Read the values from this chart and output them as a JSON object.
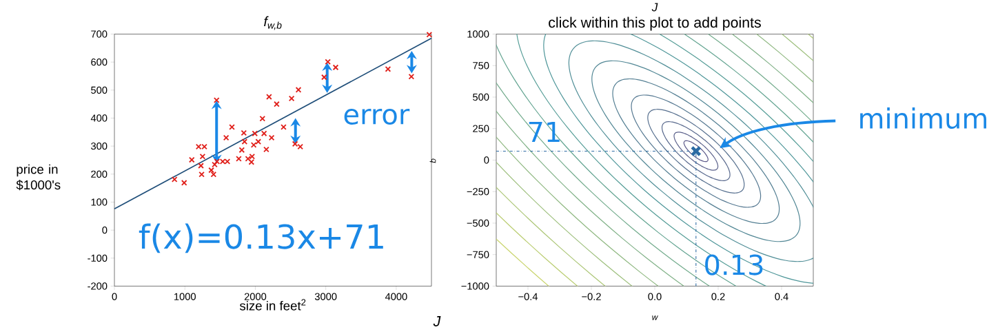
{
  "chart_data": [
    {
      "type": "scatter",
      "title": "f$_{w,b}$",
      "xlabel": "size in feet$^{2}$",
      "ylabel": "price in $1000's",
      "xlim": [
        0,
        4500
      ],
      "ylim": [
        -200,
        700
      ],
      "xticks": [
        0,
        1000,
        2000,
        3000,
        4000
      ],
      "yticks": [
        -200,
        -100,
        0,
        100,
        200,
        300,
        400,
        500,
        600,
        700
      ],
      "series": [
        {
          "type": "scatter",
          "color": "#e0201b",
          "marker": "cross",
          "x": [
            853,
            990,
            1098,
            1195,
            1277,
            1251,
            1228,
            1238,
            1375,
            1407,
            1423,
            1456,
            1450,
            1537,
            1603,
            1586,
            1668,
            1765,
            1808,
            1837,
            1847,
            1896,
            1945,
            1954,
            1977,
            1993,
            2042,
            2101,
            2124,
            2156,
            2231,
            2195,
            2303,
            2401,
            2515,
            2612,
            2564,
            2638,
            2977,
            3029,
            3140,
            3883,
            4215,
            4469
          ],
          "values": [
            181,
            169,
            251,
            298,
            298,
            263,
            230,
            199,
            214,
            199,
            234,
            245,
            464,
            245,
            245,
            330,
            368,
            255,
            286,
            347,
            316,
            255,
            243,
            263,
            304,
            345,
            316,
            398,
            345,
            288,
            330,
            476,
            450,
            368,
            470,
            501,
            308,
            298,
            546,
            601,
            581,
            575,
            548,
            698
          ]
        },
        {
          "type": "line",
          "color": "#1f4e79",
          "marker": "none",
          "x": [
            0,
            4500
          ],
          "values": [
            76,
            685
          ]
        }
      ],
      "annotations": [
        "error",
        "f(x)=0.13x+71"
      ]
    },
    {
      "type": "scatter",
      "title": "J",
      "subtitle": "click within this plot to add points",
      "xlabel": "w",
      "ylabel": "b",
      "x": [
        0.13
      ],
      "values": [
        71
      ],
      "color": "#2b6aa3",
      "marker": "cross",
      "xlim": [
        -0.5,
        0.5
      ],
      "ylim": [
        -1000,
        1000
      ],
      "xticks": [
        {
          "value": -0.4,
          "label": "−0.4"
        },
        {
          "value": -0.2,
          "label": "−0.2"
        },
        {
          "value": 0,
          "label": "0.0"
        },
        {
          "value": 0.2,
          "label": "0.2"
        },
        {
          "value": 0.4,
          "label": "0.4"
        }
      ],
      "yticks": [
        {
          "value": -1000,
          "label": "−1000"
        },
        {
          "value": -750,
          "label": "−750"
        },
        {
          "value": -500,
          "label": "−500"
        },
        {
          "value": -250,
          "label": "−250"
        },
        0,
        250,
        500,
        750,
        1000
      ],
      "ref_lines": [
        {
          "axis": "x",
          "value": 0.13,
          "color": "#2b6aa3",
          "line_style": "dashdot"
        },
        {
          "axis": "y",
          "value": 71,
          "color": "#2b6aa3",
          "line_style": "dashdot"
        }
      ],
      "annotations": [
        "71",
        "0.13",
        "minimum",
        "J"
      ]
    }
  ]
}
